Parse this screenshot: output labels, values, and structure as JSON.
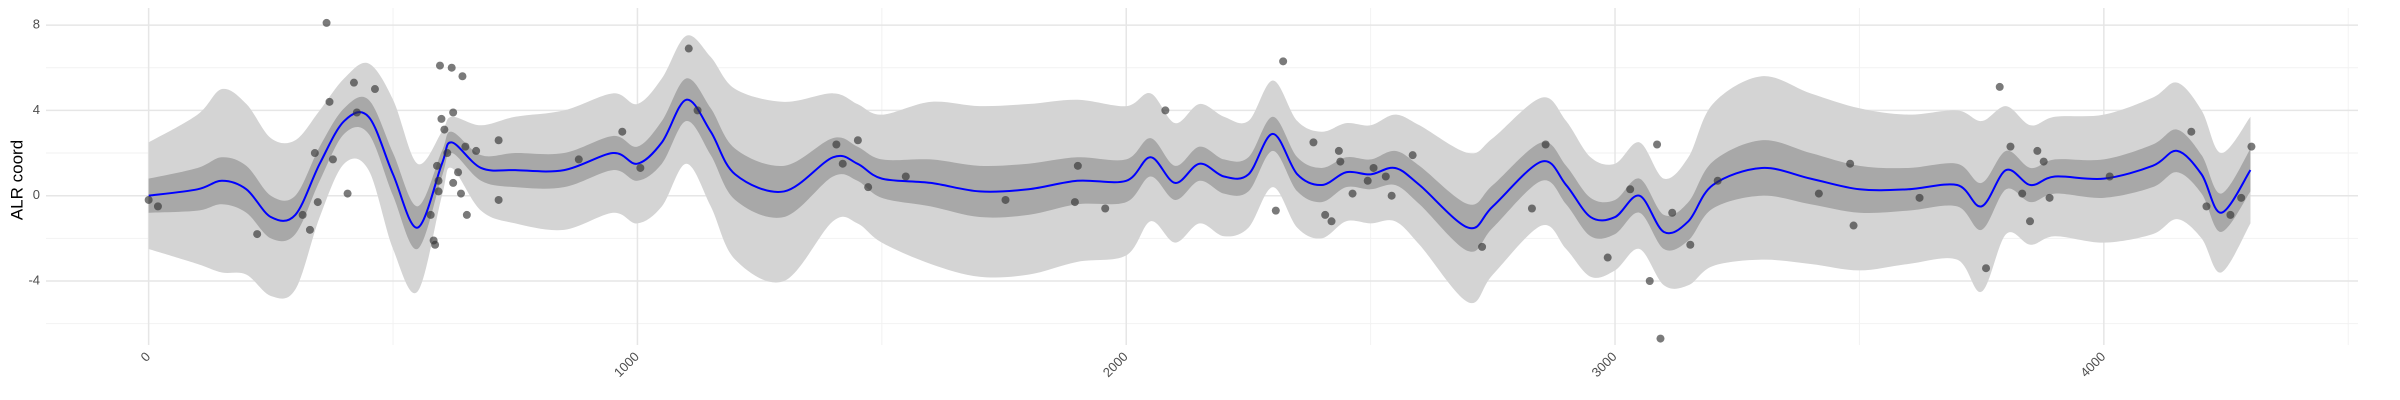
{
  "chart_data": {
    "type": "line",
    "ylabel": "ALR coord",
    "xlim": [
      -210,
      4520
    ],
    "ylim": [
      -7.0,
      8.8
    ],
    "xticks": [
      0,
      1000,
      2000,
      3000,
      4000
    ],
    "yticks": [
      -4,
      0,
      4,
      8
    ],
    "x_minor_grid": [
      500,
      1500,
      2500,
      3500,
      4500
    ],
    "y_minor_grid": [
      -6,
      -2,
      2,
      6
    ],
    "grid": true,
    "x": [
      0,
      100,
      150,
      200,
      250,
      300,
      350,
      400,
      450,
      500,
      550,
      600,
      620,
      680,
      750,
      850,
      950,
      1000,
      1050,
      1100,
      1150,
      1200,
      1300,
      1400,
      1450,
      1500,
      1600,
      1700,
      1800,
      1900,
      2000,
      2050,
      2100,
      2150,
      2200,
      2250,
      2300,
      2350,
      2400,
      2450,
      2500,
      2550,
      2600,
      2700,
      2750,
      2850,
      2900,
      2950,
      3000,
      3050,
      3100,
      3150,
      3200,
      3300,
      3400,
      3500,
      3600,
      3700,
      3750,
      3800,
      3850,
      3900,
      4000,
      4100,
      4150,
      4200,
      4240,
      4300
    ],
    "bands": [
      {
        "color": "#d4d4d4",
        "lower": [
          -2.5,
          -3.2,
          -3.6,
          -3.7,
          -4.7,
          -4.4,
          -1.0,
          1.5,
          1.2,
          -2.5,
          -4.5,
          0.0,
          1.3,
          -0.7,
          -1.3,
          -1.6,
          -0.8,
          -1.3,
          -0.5,
          1.5,
          -0.5,
          -3.0,
          -4.0,
          -1.2,
          -1.3,
          -2.2,
          -3.2,
          -3.8,
          -3.7,
          -3.1,
          -2.8,
          -1.2,
          -2.2,
          -1.3,
          -1.9,
          -1.5,
          0.4,
          -1.5,
          -2.0,
          -1.2,
          -1.3,
          -1.2,
          -2.3,
          -5.0,
          -3.7,
          -1.4,
          -2.5,
          -3.8,
          -3.5,
          -2.5,
          -4.2,
          -4.2,
          -3.3,
          -3.0,
          -3.2,
          -3.5,
          -3.2,
          -3.0,
          -4.5,
          -1.8,
          -2.3,
          -1.9,
          -2.2,
          -1.8,
          -1.1,
          -2.0,
          -3.6,
          -1.3
        ],
        "upper": [
          2.5,
          3.8,
          5.0,
          4.3,
          2.7,
          2.6,
          4.0,
          5.5,
          6.2,
          4.5,
          1.5,
          3.0,
          3.7,
          3.3,
          3.7,
          4.0,
          4.8,
          4.3,
          5.5,
          7.5,
          6.5,
          5.0,
          4.4,
          4.8,
          4.3,
          3.8,
          4.4,
          4.2,
          4.3,
          4.5,
          4.2,
          4.8,
          3.4,
          4.3,
          3.7,
          3.5,
          5.4,
          3.5,
          3.0,
          3.4,
          3.3,
          3.8,
          3.3,
          2.0,
          2.7,
          4.6,
          3.5,
          1.8,
          1.5,
          2.5,
          0.8,
          1.8,
          4.3,
          5.6,
          4.8,
          4.1,
          3.8,
          4.0,
          3.5,
          4.2,
          3.3,
          3.7,
          3.8,
          4.6,
          5.3,
          4.0,
          2.0,
          3.7
        ]
      },
      {
        "color": "#a8a8a8",
        "lower": [
          -0.8,
          -0.7,
          -0.4,
          -0.8,
          -2.0,
          -1.8,
          0.7,
          2.9,
          2.9,
          0.0,
          -2.5,
          0.9,
          2.0,
          0.7,
          0.4,
          0.4,
          1.2,
          0.7,
          1.5,
          3.5,
          1.9,
          -0.2,
          -1.0,
          0.9,
          0.7,
          -0.1,
          -0.5,
          -1.0,
          -0.9,
          -0.4,
          -0.3,
          0.9,
          -0.2,
          0.7,
          0.1,
          0.2,
          2.1,
          0.2,
          -0.3,
          0.4,
          0.3,
          0.5,
          -0.4,
          -2.6,
          -1.5,
          0.7,
          -0.4,
          -1.9,
          -1.8,
          -0.8,
          -2.5,
          -2.1,
          -0.6,
          0.0,
          -0.4,
          -0.8,
          -0.7,
          -0.5,
          -1.6,
          0.3,
          -0.3,
          0.1,
          -0.1,
          0.4,
          1.1,
          0.1,
          -1.7,
          0.2
        ],
        "upper": [
          0.8,
          1.3,
          1.8,
          1.4,
          0.0,
          0.0,
          2.3,
          4.1,
          4.5,
          2.0,
          -0.5,
          2.1,
          3.0,
          1.9,
          2.0,
          2.0,
          2.8,
          2.3,
          3.5,
          5.5,
          4.1,
          2.2,
          1.4,
          2.7,
          2.3,
          1.7,
          1.7,
          1.4,
          1.5,
          1.8,
          1.7,
          2.7,
          1.4,
          2.3,
          1.7,
          1.8,
          3.7,
          1.8,
          1.3,
          1.8,
          1.7,
          2.1,
          1.4,
          -0.4,
          0.5,
          2.5,
          1.4,
          -0.1,
          -0.2,
          0.8,
          -0.9,
          -0.3,
          1.6,
          2.6,
          2.0,
          1.4,
          1.3,
          1.5,
          0.6,
          2.1,
          1.3,
          1.7,
          1.7,
          2.4,
          3.1,
          1.9,
          0.1,
          2.2
        ]
      }
    ],
    "mean": {
      "color": "#0000ff",
      "values": [
        0.0,
        0.3,
        0.7,
        0.3,
        -1.0,
        -0.9,
        1.5,
        3.5,
        3.7,
        1.0,
        -1.5,
        1.5,
        2.5,
        1.3,
        1.2,
        1.2,
        2.0,
        1.5,
        2.5,
        4.5,
        3.0,
        1.0,
        0.2,
        1.8,
        1.5,
        0.8,
        0.6,
        0.2,
        0.3,
        0.7,
        0.7,
        1.8,
        0.6,
        1.5,
        0.9,
        1.0,
        2.9,
        1.0,
        0.5,
        1.1,
        1.0,
        1.3,
        0.5,
        -1.5,
        -0.5,
        1.6,
        0.5,
        -1.0,
        -1.0,
        0.0,
        -1.7,
        -1.2,
        0.5,
        1.3,
        0.8,
        0.3,
        0.3,
        0.5,
        -0.5,
        1.2,
        0.5,
        0.9,
        0.8,
        1.4,
        2.1,
        1.0,
        -0.8,
        1.2
      ]
    },
    "points": {
      "color": "#333333",
      "x": [
        0,
        19,
        222,
        315,
        330,
        340,
        346,
        364,
        370,
        377,
        407,
        420,
        426,
        463,
        577,
        583,
        586,
        590,
        593,
        593,
        596,
        599,
        605,
        611,
        620,
        623,
        623,
        633,
        639,
        642,
        648,
        651,
        670,
        716,
        716,
        880,
        969,
        1006,
        1105,
        1123,
        1407,
        1420,
        1451,
        1472,
        1549,
        1753,
        1895,
        1901,
        1957,
        2080,
        2306,
        2321,
        2383,
        2407,
        2420,
        2435,
        2438,
        2463,
        2494,
        2506,
        2531,
        2543,
        2586,
        2728,
        2830,
        2858,
        2985,
        3031,
        3071,
        3086,
        3093,
        3117,
        3154,
        3210,
        3417,
        3481,
        3488,
        3623,
        3759,
        3787,
        3809,
        3833,
        3849,
        3864,
        3877,
        3889,
        4012,
        4179,
        4210,
        4259,
        4281,
        4302
      ],
      "y": [
        -0.2,
        -0.5,
        -1.8,
        -0.9,
        -1.6,
        2.0,
        -0.3,
        8.1,
        4.4,
        1.7,
        0.1,
        5.3,
        3.9,
        5.0,
        -0.9,
        -2.1,
        -2.3,
        1.4,
        0.7,
        0.2,
        6.1,
        3.6,
        3.1,
        2.0,
        6.0,
        3.9,
        0.6,
        1.1,
        0.1,
        5.6,
        2.3,
        -0.9,
        2.1,
        2.6,
        -0.2,
        1.7,
        3.0,
        1.3,
        6.9,
        4.0,
        2.4,
        1.5,
        2.6,
        0.4,
        0.9,
        -0.2,
        -0.3,
        1.4,
        -0.6,
        4.0,
        -0.7,
        6.3,
        2.5,
        -0.9,
        -1.2,
        2.1,
        1.6,
        0.1,
        0.7,
        1.3,
        0.9,
        0.0,
        1.9,
        -2.4,
        -0.6,
        2.4,
        -2.9,
        0.3,
        -4.0,
        2.4,
        -6.7,
        -0.8,
        -2.3,
        0.7,
        0.1,
        1.5,
        -1.4,
        -0.1,
        -3.4,
        5.1,
        2.3,
        0.1,
        -1.2,
        2.1,
        1.6,
        -0.1,
        0.9,
        3.0,
        -0.5,
        -0.9,
        -0.1,
        2.3
      ]
    }
  }
}
